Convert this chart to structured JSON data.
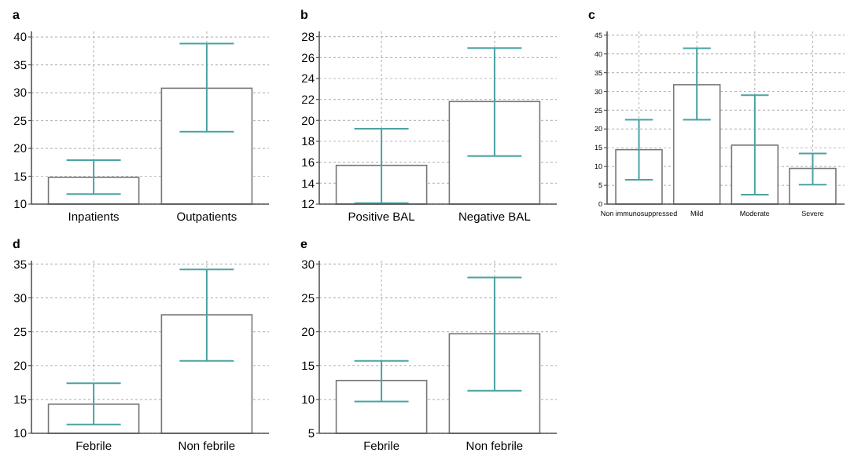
{
  "chart_data": [
    {
      "type": "bar",
      "title": "a",
      "categories": [
        "Inpatients",
        "Outpatients"
      ],
      "values": [
        14.8,
        30.8
      ],
      "errors": [
        [
          11.8,
          17.9
        ],
        [
          23,
          38.8
        ]
      ],
      "color": "#ffffff",
      "ylim": [
        10,
        41
      ],
      "yticks": [
        10,
        15,
        20,
        25,
        30,
        35,
        40
      ],
      "grid": true
    },
    {
      "type": "bar",
      "title": "b",
      "categories": [
        "Positive BAL",
        "Negative BAL"
      ],
      "values": [
        15.7,
        21.8
      ],
      "errors": [
        [
          12.1,
          19.2
        ],
        [
          16.6,
          26.9
        ]
      ],
      "color": "#ffffff",
      "ylim": [
        12,
        28.5
      ],
      "yticks": [
        12,
        14,
        16,
        18,
        20,
        22,
        24,
        26,
        28
      ],
      "grid": true
    },
    {
      "type": "bar",
      "title": "c",
      "categories": [
        "Non immunosuppressed",
        "Mild",
        "Moderate",
        "Severe"
      ],
      "values": [
        14.5,
        31.8,
        15.7,
        9.5
      ],
      "errors": [
        [
          6.5,
          22.5
        ],
        [
          22.5,
          41.5
        ],
        [
          2.5,
          29
        ],
        [
          5.2,
          13.5
        ]
      ],
      "color": "#ffffff",
      "ylim": [
        0,
        46
      ],
      "yticks": [
        0,
        5,
        10,
        15,
        20,
        25,
        30,
        35,
        40,
        45
      ],
      "grid": true
    },
    {
      "type": "bar",
      "title": "d",
      "categories": [
        "Febrile",
        "Non febrile"
      ],
      "values": [
        14.3,
        27.5
      ],
      "errors": [
        [
          11.3,
          17.4
        ],
        [
          20.7,
          34.2
        ]
      ],
      "color": "#ffffff",
      "ylim": [
        10,
        35.5
      ],
      "yticks": [
        10,
        15,
        20,
        25,
        30,
        35
      ],
      "grid": true
    },
    {
      "type": "bar",
      "title": "e",
      "categories": [
        "Febrile",
        "Non febrile"
      ],
      "values": [
        12.8,
        19.7
      ],
      "errors": [
        [
          9.7,
          15.7
        ],
        [
          11.3,
          28
        ]
      ],
      "color": "#ffffff",
      "ylim": [
        5,
        30.5
      ],
      "yticks": [
        5,
        10,
        15,
        20,
        25,
        30
      ],
      "grid": true
    }
  ]
}
